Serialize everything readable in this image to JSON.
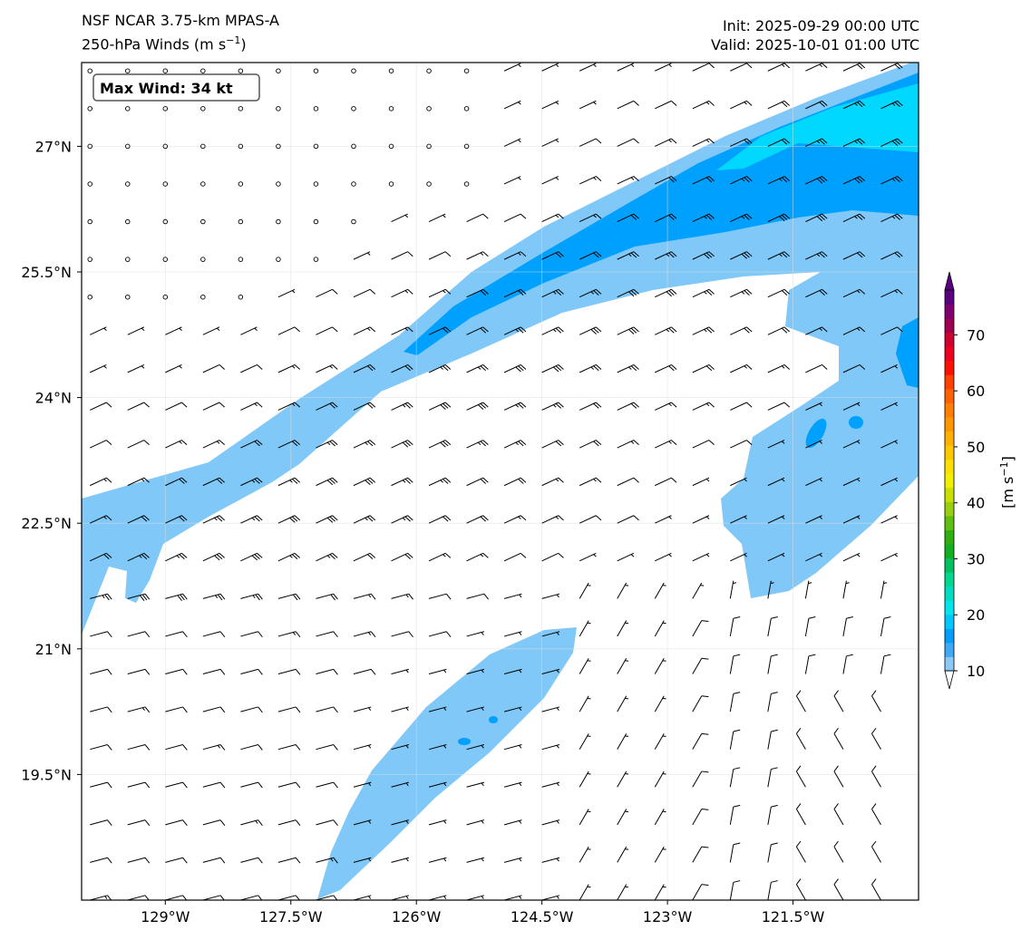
{
  "header": {
    "model": "NSF NCAR 3.75-km MPAS-A",
    "field": "250-hPa Winds (m s",
    "field_sup": "−1",
    "field_end": ")",
    "init": "Init: 2025-09-29 00:00 UTC",
    "valid": "Valid: 2025-10-01 01:00 UTC"
  },
  "annotation": {
    "max_wind": "Max Wind: 34 kt"
  },
  "chart_data": {
    "type": "map",
    "title": "250-hPa Winds (m s-1)",
    "extent": {
      "lon": [
        -130,
        -120
      ],
      "lat": [
        18,
        28
      ]
    },
    "lon_ticks": [
      {
        "v": -129,
        "label": "129°W"
      },
      {
        "v": -127.5,
        "label": "127.5°W"
      },
      {
        "v": -126,
        "label": "126°W"
      },
      {
        "v": -124.5,
        "label": "124.5°W"
      },
      {
        "v": -123,
        "label": "123°W"
      },
      {
        "v": -121.5,
        "label": "121.5°W"
      }
    ],
    "lat_ticks": [
      {
        "v": 27,
        "label": "27°N"
      },
      {
        "v": 25.5,
        "label": "25.5°N"
      },
      {
        "v": 24,
        "label": "24°N"
      },
      {
        "v": 22.5,
        "label": "22.5°N"
      },
      {
        "v": 21,
        "label": "21°N"
      },
      {
        "v": 19.5,
        "label": "19.5°N"
      }
    ],
    "grid": true,
    "barb_spacing_deg": 0.45,
    "colorbar": {
      "label": "[m s",
      "label_sup": "−1",
      "label_end": "]",
      "range": [
        10,
        78
      ],
      "ticks": [
        {
          "v": 10,
          "label": "10"
        },
        {
          "v": 20,
          "label": "20"
        },
        {
          "v": 30,
          "label": "30"
        },
        {
          "v": 40,
          "label": "40"
        },
        {
          "v": 50,
          "label": "50"
        },
        {
          "v": 60,
          "label": "60"
        },
        {
          "v": 70,
          "label": "70"
        }
      ],
      "colors": [
        "#8cc8f8",
        "#3fa9f5",
        "#009fff",
        "#00c8ff",
        "#00e5f0",
        "#00dcc0",
        "#00d890",
        "#00c060",
        "#10b020",
        "#30b010",
        "#60c010",
        "#98d010",
        "#c8e000",
        "#f0f000",
        "#ffe000",
        "#ffc800",
        "#ffb000",
        "#ff9800",
        "#ff8000",
        "#ff6000",
        "#ff4000",
        "#ff1000",
        "#f00020",
        "#d00030",
        "#a00050",
        "#800070",
        "#5a0080"
      ],
      "extend": "both"
    },
    "fill_colors": {
      "light": "#7fc8f8",
      "medium": "#00a0ff",
      "cyan": "#00d8ff"
    }
  }
}
